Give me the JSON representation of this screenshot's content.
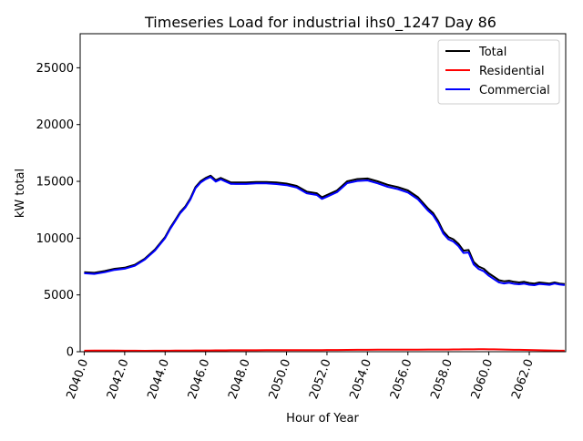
{
  "chart_data": {
    "type": "line",
    "title": "Timeseries Load for industrial ihs0_1247  Day 86",
    "xlabel": "Hour of Year",
    "ylabel": "kW total",
    "xlim": [
      2039.8,
      2063.8
    ],
    "ylim": [
      0,
      28000
    ],
    "x_ticks": [
      2040,
      2042,
      2044,
      2046,
      2048,
      2050,
      2052,
      2054,
      2056,
      2058,
      2060,
      2062
    ],
    "x_tick_labels": [
      "2040.0",
      "2042.0",
      "2044.0",
      "2046.0",
      "2048.0",
      "2050.0",
      "2052.0",
      "2054.0",
      "2056.0",
      "2058.0",
      "2060.0",
      "2062.0"
    ],
    "y_ticks": [
      0,
      5000,
      10000,
      15000,
      20000,
      25000
    ],
    "y_tick_labels": [
      "0",
      "5000",
      "10000",
      "15000",
      "20000",
      "25000"
    ],
    "grid": false,
    "legend_position": "top-right",
    "x": [
      2040.0,
      2040.5,
      2041.0,
      2041.5,
      2042.0,
      2042.5,
      2043.0,
      2043.5,
      2044.0,
      2044.25,
      2044.5,
      2044.75,
      2045.0,
      2045.25,
      2045.5,
      2045.75,
      2046.0,
      2046.25,
      2046.5,
      2046.75,
      2047.0,
      2047.25,
      2047.5,
      2048.0,
      2048.5,
      2049.0,
      2049.5,
      2050.0,
      2050.5,
      2051.0,
      2051.5,
      2051.75,
      2052.0,
      2052.5,
      2053.0,
      2053.5,
      2054.0,
      2054.5,
      2055.0,
      2055.5,
      2056.0,
      2056.5,
      2057.0,
      2057.25,
      2057.5,
      2057.75,
      2058.0,
      2058.25,
      2058.5,
      2058.75,
      2059.0,
      2059.25,
      2059.5,
      2059.75,
      2060.0,
      2060.25,
      2060.5,
      2060.75,
      2061.0,
      2061.25,
      2061.5,
      2061.75,
      2062.0,
      2062.25,
      2062.5,
      2062.75,
      2063.0,
      2063.25,
      2063.5,
      2063.75
    ],
    "series": [
      {
        "name": "Total",
        "color": "#000000",
        "values": [
          7000,
          6950,
          7100,
          7300,
          7400,
          7650,
          8200,
          9000,
          10100,
          10900,
          11600,
          12300,
          12800,
          13500,
          14500,
          15000,
          15300,
          15500,
          15100,
          15300,
          15100,
          14900,
          14900,
          14900,
          14950,
          14950,
          14900,
          14800,
          14600,
          14100,
          13950,
          13600,
          13800,
          14200,
          15000,
          15200,
          15250,
          15000,
          14700,
          14500,
          14200,
          13600,
          12600,
          12200,
          11500,
          10600,
          10100,
          9900,
          9500,
          8900,
          8950,
          7900,
          7500,
          7300,
          6900,
          6600,
          6300,
          6200,
          6250,
          6150,
          6100,
          6150,
          6050,
          6000,
          6100,
          6050,
          6000,
          6100,
          6000,
          5950
        ]
      },
      {
        "name": "Residential",
        "color": "#ff0000",
        "values": [
          90,
          95,
          100,
          95,
          90,
          85,
          80,
          85,
          90,
          92,
          95,
          98,
          100,
          105,
          110,
          110,
          112,
          115,
          118,
          120,
          122,
          125,
          128,
          130,
          132,
          135,
          135,
          134,
          140,
          145,
          148,
          148,
          150,
          155,
          160,
          165,
          170,
          175,
          178,
          180,
          185,
          188,
          190,
          192,
          194,
          195,
          196,
          198,
          200,
          205,
          210,
          212,
          214,
          215,
          210,
          205,
          198,
          190,
          180,
          172,
          165,
          160,
          150,
          140,
          130,
          120,
          110,
          100,
          90,
          85
        ]
      },
      {
        "name": "Commercial",
        "color": "#0000ff",
        "values": [
          6910,
          6855,
          7000,
          7205,
          7310,
          7565,
          8120,
          8915,
          10010,
          10808,
          11505,
          12202,
          12700,
          13395,
          14390,
          14890,
          15188,
          15385,
          14982,
          15180,
          14978,
          14775,
          14772,
          14770,
          14818,
          14815,
          14765,
          14666,
          14460,
          13955,
          13802,
          13452,
          13650,
          14045,
          14840,
          15035,
          15080,
          14825,
          14522,
          14320,
          14015,
          13412,
          12410,
          12008,
          11306,
          10405,
          9904,
          9702,
          9300,
          8695,
          8740,
          7688,
          7286,
          7085,
          6690,
          6395,
          6102,
          6010,
          6070,
          5978,
          5935,
          5990,
          5900,
          5860,
          5970,
          5930,
          5890,
          6000,
          5910,
          5865
        ]
      }
    ]
  }
}
